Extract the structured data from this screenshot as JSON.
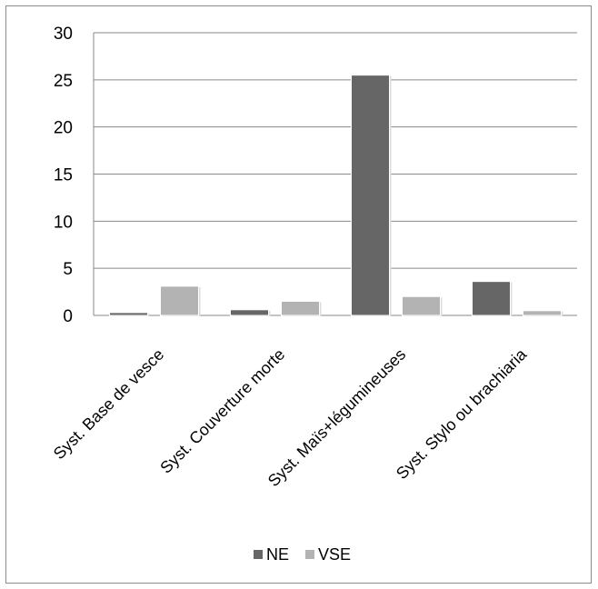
{
  "chart_data": {
    "type": "bar",
    "title": "",
    "xlabel": "",
    "ylabel": "",
    "categories": [
      "Syst. Base de vesce",
      "Syst. Couverture morte",
      "Syst. Maïs+légumineuses",
      "Syst. Stylo ou brachiaria"
    ],
    "series": [
      {
        "name": "NE",
        "values": [
          0.3,
          0.6,
          25.5,
          3.6
        ],
        "color": "#666666"
      },
      {
        "name": "VSE",
        "values": [
          3.1,
          1.5,
          2.0,
          0.5
        ],
        "color": "#b3b3b3"
      }
    ],
    "ylim": [
      0,
      30
    ],
    "yticks": [
      0,
      5,
      10,
      15,
      20,
      25,
      30
    ],
    "grid": true,
    "legend_position": "bottom"
  }
}
